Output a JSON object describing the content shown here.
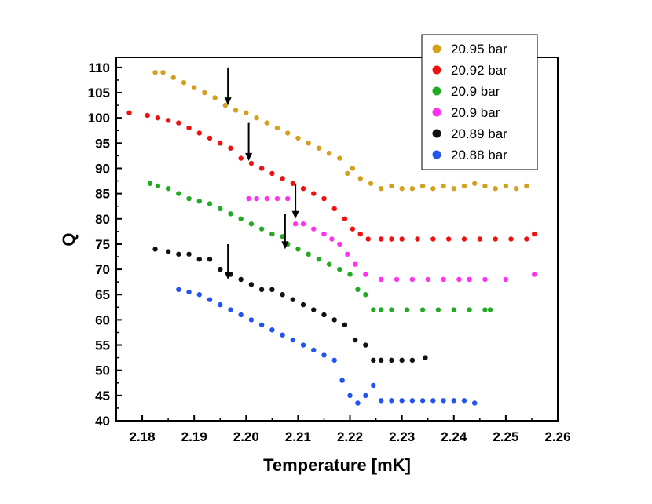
{
  "chart_data": {
    "type": "scatter",
    "title": "",
    "xlabel": "Temperature [mK]",
    "ylabel": "Q",
    "xlim": [
      2.175,
      2.26
    ],
    "ylim": [
      40,
      112
    ],
    "xticks": [
      2.18,
      2.19,
      2.2,
      2.21,
      2.22,
      2.23,
      2.24,
      2.25,
      2.26
    ],
    "xtick_labels": [
      "2.18",
      "2.19",
      "2.20",
      "2.21",
      "2.22",
      "2.23",
      "2.24",
      "2.25",
      "2.26"
    ],
    "yticks": [
      40,
      45,
      50,
      55,
      60,
      65,
      70,
      75,
      80,
      85,
      90,
      95,
      100,
      105,
      110
    ],
    "grid": false,
    "legend_position": "top-right",
    "series": [
      {
        "name": "20.95 bar",
        "color": "#d4a020",
        "x": [
          2.1825,
          2.184,
          2.186,
          2.188,
          2.19,
          2.192,
          2.194,
          2.196,
          2.198,
          2.2,
          2.202,
          2.204,
          2.206,
          2.208,
          2.21,
          2.212,
          2.214,
          2.216,
          2.218,
          2.2195,
          2.2205,
          2.222,
          2.224,
          2.226,
          2.228,
          2.23,
          2.232,
          2.234,
          2.236,
          2.238,
          2.24,
          2.242,
          2.244,
          2.246,
          2.248,
          2.25,
          2.252,
          2.254
        ],
        "y": [
          109,
          109,
          108,
          107,
          106,
          105,
          104,
          102.5,
          101.5,
          101,
          100,
          99,
          98,
          97,
          96,
          95,
          94,
          93,
          92,
          89,
          90,
          88,
          87,
          86,
          86.5,
          86,
          86,
          86.5,
          86,
          86.5,
          86,
          86.5,
          87,
          86.5,
          86,
          86.5,
          86,
          86.5
        ]
      },
      {
        "name": "20.92 bar",
        "color": "#ee1111",
        "x": [
          2.1775,
          2.181,
          2.183,
          2.185,
          2.187,
          2.189,
          2.191,
          2.193,
          2.195,
          2.197,
          2.199,
          2.201,
          2.203,
          2.205,
          2.207,
          2.209,
          2.211,
          2.213,
          2.215,
          2.217,
          2.219,
          2.2205,
          2.222,
          2.2235,
          2.226,
          2.228,
          2.23,
          2.233,
          2.236,
          2.239,
          2.242,
          2.245,
          2.248,
          2.251,
          2.254,
          2.2555
        ],
        "y": [
          101,
          100.5,
          100,
          99.5,
          99,
          98,
          97,
          96,
          95,
          94,
          92,
          91,
          90,
          89,
          88,
          87,
          86,
          85,
          84,
          82,
          80,
          78,
          77,
          76,
          76,
          76,
          76,
          76,
          76,
          76,
          76,
          76,
          76,
          76,
          76,
          77
        ]
      },
      {
        "name": "20.9 bar",
        "color": "#22aa22",
        "x": [
          2.1815,
          2.183,
          2.185,
          2.187,
          2.189,
          2.191,
          2.193,
          2.195,
          2.197,
          2.199,
          2.201,
          2.203,
          2.205,
          2.207,
          2.208,
          2.21,
          2.212,
          2.214,
          2.216,
          2.218,
          2.22,
          2.2215,
          2.223,
          2.2245,
          2.226,
          2.228,
          2.231,
          2.234,
          2.237,
          2.24,
          2.243,
          2.246,
          2.247
        ],
        "y": [
          87,
          86.5,
          86,
          85,
          84,
          83.5,
          83,
          82,
          81,
          80,
          79,
          78,
          77,
          76.5,
          75,
          74,
          73,
          72,
          71,
          70,
          69,
          66,
          65,
          62,
          62,
          62,
          62,
          62,
          62,
          62,
          62,
          62,
          62
        ]
      },
      {
        "name": "20.9 bar",
        "color": "#ff33ee",
        "x": [
          2.2005,
          2.202,
          2.204,
          2.206,
          2.208,
          2.2095,
          2.211,
          2.213,
          2.215,
          2.2165,
          2.218,
          2.2195,
          2.221,
          2.223,
          2.226,
          2.229,
          2.232,
          2.235,
          2.238,
          2.241,
          2.243,
          2.246,
          2.25,
          2.2555
        ],
        "y": [
          84,
          84,
          84,
          84,
          84,
          79,
          79,
          78,
          77,
          76,
          75,
          73,
          71,
          69,
          68,
          68,
          68,
          68,
          68,
          68,
          68,
          68,
          68,
          69
        ]
      },
      {
        "name": "20.89 bar",
        "color": "#111111",
        "x": [
          2.1825,
          2.185,
          2.187,
          2.189,
          2.191,
          2.193,
          2.195,
          2.197,
          2.199,
          2.201,
          2.203,
          2.205,
          2.207,
          2.209,
          2.211,
          2.213,
          2.215,
          2.217,
          2.219,
          2.221,
          2.223,
          2.2245,
          2.226,
          2.228,
          2.23,
          2.232,
          2.2345
        ],
        "y": [
          74,
          73.5,
          73,
          73,
          72,
          72,
          70,
          69,
          68,
          67,
          66,
          66,
          65,
          64,
          63,
          62,
          61,
          60,
          59,
          56,
          55,
          52,
          52,
          52,
          52,
          52,
          52.5
        ]
      },
      {
        "name": "20.88 bar",
        "color": "#2255ee",
        "x": [
          2.187,
          2.189,
          2.191,
          2.193,
          2.195,
          2.197,
          2.199,
          2.201,
          2.203,
          2.205,
          2.207,
          2.209,
          2.211,
          2.213,
          2.215,
          2.217,
          2.2185,
          2.22,
          2.2215,
          2.223,
          2.2245,
          2.226,
          2.228,
          2.23,
          2.232,
          2.234,
          2.236,
          2.238,
          2.24,
          2.242,
          2.244
        ],
        "y": [
          66,
          65.5,
          65,
          64,
          63,
          62,
          61,
          60,
          59,
          58,
          57,
          56,
          55,
          54,
          53,
          52,
          48,
          45,
          43.5,
          45,
          47,
          44,
          44,
          44,
          44,
          44,
          44,
          44,
          44,
          44,
          43.5
        ]
      }
    ],
    "arrows": [
      {
        "x": 2.1965,
        "y_from": 110,
        "y_to": 102.5
      },
      {
        "x": 2.2005,
        "y_from": 99,
        "y_to": 91.5
      },
      {
        "x": 2.2095,
        "y_from": 87,
        "y_to": 80
      },
      {
        "x": 2.2075,
        "y_from": 81,
        "y_to": 74
      },
      {
        "x": 2.1965,
        "y_from": 75,
        "y_to": 68
      }
    ]
  }
}
